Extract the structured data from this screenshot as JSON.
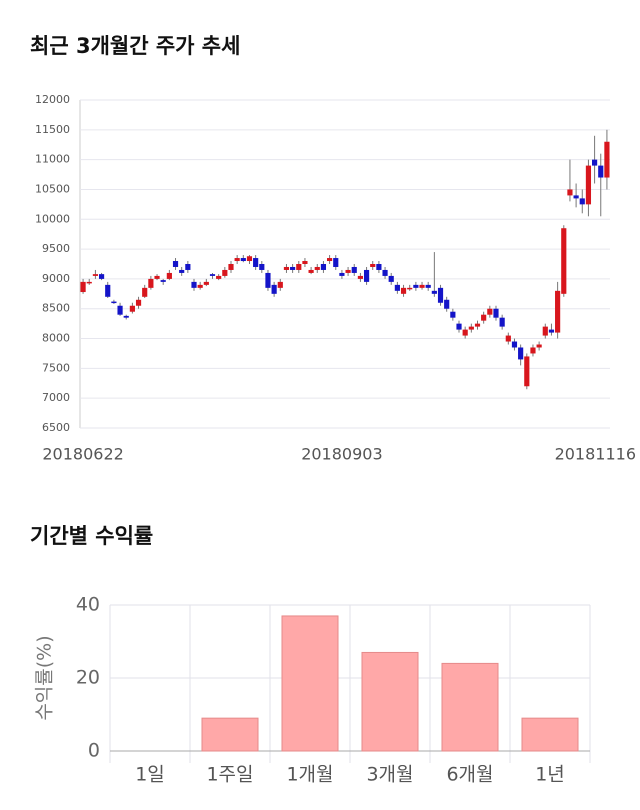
{
  "chart_data": [
    {
      "type": "candlestick",
      "title": "최근 3개월간 주가 추세",
      "categories": [
        "20180622",
        null,
        null,
        null,
        null,
        null,
        null,
        null,
        null,
        null,
        null,
        null,
        null,
        null,
        null,
        null,
        null,
        null,
        null,
        null,
        null,
        null,
        null,
        null,
        null,
        null,
        null,
        null,
        null,
        null,
        null,
        null,
        null,
        null,
        null,
        null,
        null,
        null,
        null,
        null,
        null,
        null,
        "20180903",
        null,
        null,
        null,
        null,
        null,
        null,
        null,
        null,
        null,
        null,
        null,
        null,
        null,
        null,
        null,
        null,
        null,
        null,
        null,
        null,
        null,
        null,
        null,
        null,
        null,
        null,
        null,
        null,
        null,
        null,
        null,
        null,
        null,
        null,
        null,
        null,
        null,
        null,
        null,
        null,
        null,
        null,
        "20181116"
      ],
      "open": [
        8780,
        8950,
        9050,
        9080,
        8900,
        8620,
        8550,
        8380,
        8450,
        8550,
        8700,
        8850,
        9000,
        8980,
        9000,
        9300,
        9150,
        9250,
        8950,
        8850,
        8900,
        9080,
        9000,
        9050,
        9150,
        9300,
        9350,
        9300,
        9350,
        9250,
        9100,
        8900,
        8850,
        9150,
        9200,
        9150,
        9250,
        9100,
        9150,
        9250,
        9300,
        9350,
        9100,
        9100,
        9200,
        9000,
        9150,
        9200,
        9250,
        9150,
        9050,
        8900,
        8750,
        8850,
        8900,
        8850,
        8900,
        8800,
        8850,
        8650,
        8450,
        8250,
        8050,
        8150,
        8200,
        8300,
        8400,
        8500,
        8350,
        7950,
        7950,
        7850,
        7200,
        7750,
        7850,
        8050,
        8150,
        8100,
        8750,
        10400,
        10400,
        10350,
        10250,
        11000,
        10900,
        10700
      ],
      "close": [
        8950,
        8950,
        9080,
        9000,
        8700,
        8600,
        8400,
        8350,
        8550,
        8650,
        8850,
        9000,
        9050,
        8950,
        9100,
        9200,
        9100,
        9150,
        8850,
        8900,
        8950,
        9050,
        9050,
        9150,
        9250,
        9350,
        9300,
        9380,
        9200,
        9150,
        8850,
        8750,
        8950,
        9200,
        9150,
        9250,
        9300,
        9150,
        9200,
        9150,
        9350,
        9200,
        9050,
        9150,
        9100,
        9050,
        8950,
        9250,
        9150,
        9050,
        8950,
        8800,
        8850,
        8850,
        8850,
        8900,
        8850,
        8750,
        8600,
        8500,
        8350,
        8150,
        8150,
        8200,
        8250,
        8400,
        8500,
        8350,
        8200,
        8050,
        7850,
        7650,
        7700,
        7850,
        7900,
        8200,
        8100,
        8800,
        9850,
        10500,
        10350,
        10250,
        10900,
        10900,
        10700,
        11300
      ],
      "high": [
        9000,
        9000,
        9150,
        9100,
        8950,
        8650,
        8600,
        8400,
        8600,
        8700,
        8900,
        9050,
        9080,
        9000,
        9150,
        9350,
        9200,
        9300,
        9000,
        8950,
        9000,
        9100,
        9080,
        9200,
        9300,
        9400,
        9400,
        9400,
        9400,
        9300,
        9150,
        8950,
        9000,
        9250,
        9250,
        9300,
        9350,
        9200,
        9250,
        9300,
        9400,
        9400,
        9150,
        9200,
        9250,
        9100,
        9200,
        9300,
        9300,
        9200,
        9100,
        8950,
        8900,
        8900,
        8950,
        8950,
        8950,
        9450,
        8900,
        8700,
        8500,
        8300,
        8200,
        8250,
        8300,
        8450,
        8550,
        8550,
        8400,
        8100,
        8000,
        7900,
        7750,
        7900,
        7950,
        8250,
        8250,
        8950,
        9900,
        11000,
        10600,
        10500,
        11000,
        11400,
        11100,
        11500
      ],
      "low": [
        8750,
        8900,
        9000,
        8980,
        8680,
        8580,
        8380,
        8320,
        8420,
        8500,
        8680,
        8820,
        8980,
        8900,
        8980,
        9150,
        9050,
        9100,
        8800,
        8820,
        8880,
        9000,
        8980,
        9020,
        9100,
        9250,
        9280,
        9250,
        9150,
        9100,
        8800,
        8700,
        8800,
        9100,
        9100,
        9100,
        9200,
        9080,
        9100,
        9100,
        9250,
        9150,
        9000,
        9050,
        9050,
        8950,
        8900,
        9150,
        9100,
        9000,
        8900,
        8750,
        8700,
        8800,
        8800,
        8820,
        8800,
        8700,
        8550,
        8450,
        8300,
        8100,
        8000,
        8100,
        8150,
        8250,
        8350,
        8300,
        8150,
        7900,
        7800,
        7550,
        7150,
        7700,
        7800,
        8000,
        8050,
        8000,
        8700,
        10300,
        10200,
        10100,
        10050,
        10600,
        10050,
        10500
      ],
      "up_color": "#d8161d",
      "down_color": "#1414c8",
      "ylim": [
        6500,
        12000
      ],
      "yticks": [
        6500,
        7000,
        7500,
        8000,
        8500,
        9000,
        9500,
        10000,
        10500,
        11000,
        11500,
        12000
      ],
      "grid": true
    },
    {
      "type": "bar",
      "title": "기간별 수익률",
      "ylabel": "수익률(%)",
      "categories": [
        "1일",
        "1주일",
        "1개월",
        "3개월",
        "6개월",
        "1년"
      ],
      "values": [
        0,
        9,
        37,
        27,
        24,
        9
      ],
      "color": "#ffa8a8",
      "ylim": [
        0,
        40
      ],
      "yticks": [
        0,
        20,
        40
      ],
      "grid": true
    }
  ]
}
